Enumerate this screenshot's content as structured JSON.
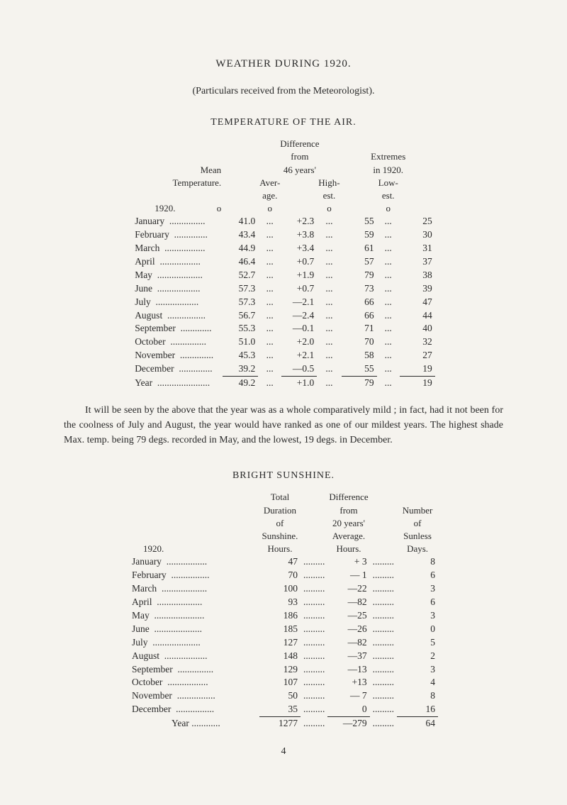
{
  "page_title": "WEATHER DURING 1920.",
  "subtitle": "(Particulars received from the Meteorologist).",
  "section1_header": "TEMPERATURE OF THE AIR.",
  "table1": {
    "headers": {
      "mean": "Mean",
      "temperature": "Temperature.",
      "difference": "Difference",
      "from": "from",
      "years46": "46 years'",
      "average": "Aver-",
      "age": "age.",
      "extremes": "Extremes",
      "in1920": "in 1920.",
      "high": "High-",
      "est_h": "est.",
      "low": "Low-",
      "est_l": "est.",
      "year_label": "1920.",
      "deg": "o"
    },
    "rows": [
      {
        "month": "January",
        "mean": "41.0",
        "diff": "+2.3",
        "high": "55",
        "low": "25"
      },
      {
        "month": "February",
        "mean": "43.4",
        "diff": "+3.8",
        "high": "59",
        "low": "30"
      },
      {
        "month": "March",
        "mean": "44.9",
        "diff": "+3.4",
        "high": "61",
        "low": "31"
      },
      {
        "month": "April",
        "mean": "46.4",
        "diff": "+0.7",
        "high": "57",
        "low": "37"
      },
      {
        "month": "May",
        "mean": "52.7",
        "diff": "+1.9",
        "high": "79",
        "low": "38"
      },
      {
        "month": "June",
        "mean": "57.3",
        "diff": "+0.7",
        "high": "73",
        "low": "39"
      },
      {
        "month": "July",
        "mean": "57.3",
        "diff": "—2.1",
        "high": "66",
        "low": "47"
      },
      {
        "month": "August",
        "mean": "56.7",
        "diff": "—2.4",
        "high": "66",
        "low": "44"
      },
      {
        "month": "September",
        "mean": "55.3",
        "diff": "—0.1",
        "high": "71",
        "low": "40"
      },
      {
        "month": "October",
        "mean": "51.0",
        "diff": "+2.0",
        "high": "70",
        "low": "32"
      },
      {
        "month": "November",
        "mean": "45.3",
        "diff": "+2.1",
        "high": "58",
        "low": "27"
      },
      {
        "month": "December",
        "mean": "39.2",
        "diff": "—0.5",
        "high": "55",
        "low": "19"
      }
    ],
    "year_row": {
      "month": "Year",
      "mean": "49.2",
      "diff": "+1.0",
      "high": "79",
      "low": "19"
    }
  },
  "paragraph": "It will be seen by the above that the year was as a whole comparatively mild ; in fact, had it not been for the coolness of July and August, the year would have ranked as one of our mildest years. The highest shade Max. temp. being 79 degs. recorded in May, and the lowest, 19 degs. in December.",
  "section2_header": "BRIGHT SUNSHINE.",
  "table2": {
    "headers": {
      "total": "Total",
      "duration": "Duration",
      "of": "of",
      "sunshine": "Sunshine.",
      "hours": "Hours.",
      "difference": "Difference",
      "from": "from",
      "years20": "20 years'",
      "average": "Average.",
      "number": "Number",
      "of2": "of",
      "sunless": "Sunless",
      "days": "Days.",
      "year_label": "1920."
    },
    "rows": [
      {
        "month": "January",
        "dur": "47",
        "diff": "+ 3",
        "days": "8"
      },
      {
        "month": "February",
        "dur": "70",
        "diff": "— 1",
        "days": "6"
      },
      {
        "month": "March",
        "dur": "100",
        "diff": "—22",
        "days": "3"
      },
      {
        "month": "April",
        "dur": "93",
        "diff": "—82",
        "days": "6"
      },
      {
        "month": "May",
        "dur": "186",
        "diff": "—25",
        "days": "3"
      },
      {
        "month": "June",
        "dur": "185",
        "diff": "—26",
        "days": "0"
      },
      {
        "month": "July",
        "dur": "127",
        "diff": "—82",
        "days": "5"
      },
      {
        "month": "August",
        "dur": "148",
        "diff": "—37",
        "days": "2"
      },
      {
        "month": "September",
        "dur": "129",
        "diff": "—13",
        "days": "3"
      },
      {
        "month": "October",
        "dur": "107",
        "diff": "+13",
        "days": "4"
      },
      {
        "month": "November",
        "dur": "50",
        "diff": "— 7",
        "days": "8"
      },
      {
        "month": "December",
        "dur": "35",
        "diff": "0",
        "days": "16"
      }
    ],
    "year_row": {
      "month": "Year",
      "dur": "1277",
      "diff": "—279",
      "days": "64"
    }
  },
  "page_number": "4",
  "colors": {
    "bg": "#f5f3ee",
    "text": "#2a2a2a"
  }
}
